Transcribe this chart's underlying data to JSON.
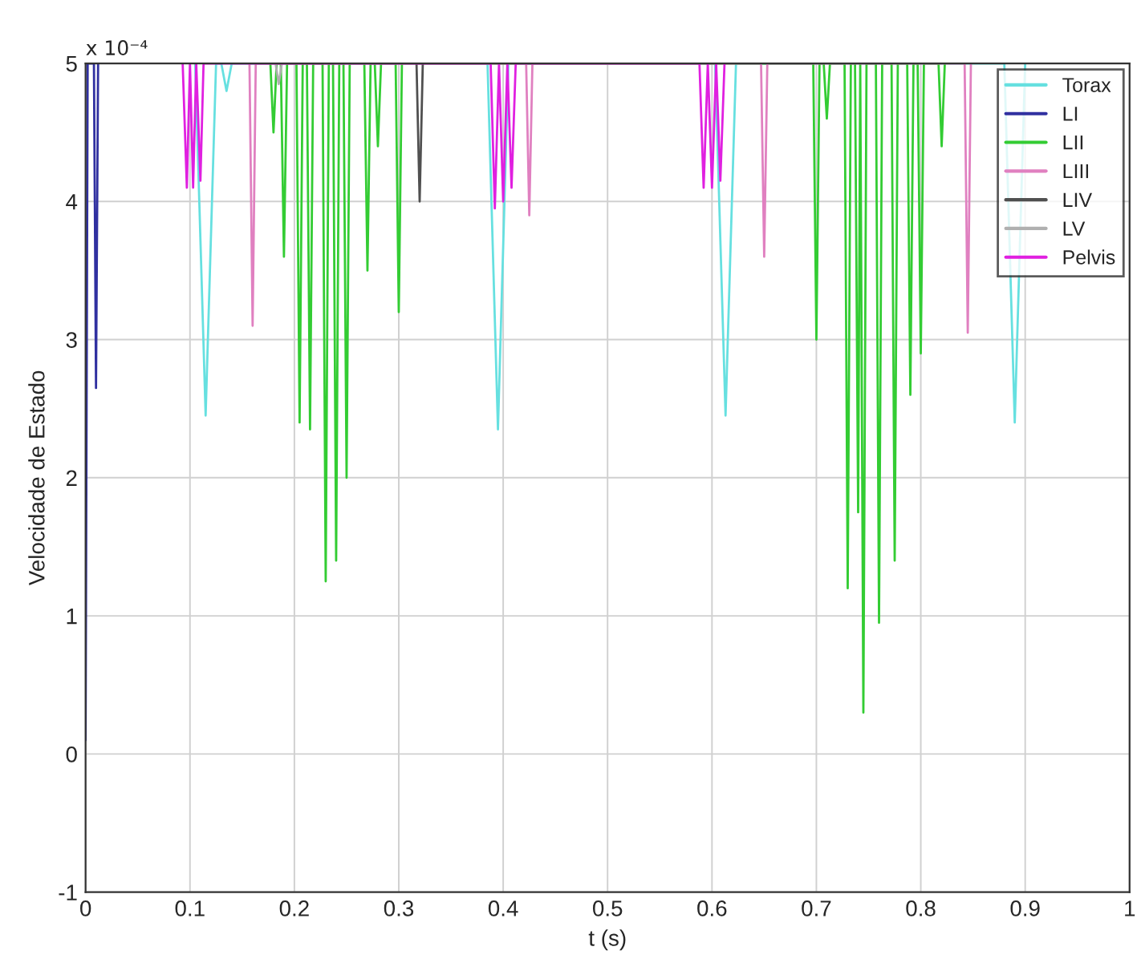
{
  "chart_data": {
    "type": "line",
    "xlabel": "t (s)",
    "ylabel": "Velocidade de Estado",
    "annotations": [
      "x 10⁻⁴"
    ],
    "xlim": [
      0,
      1
    ],
    "ylim": [
      -1,
      5
    ],
    "xticks": [
      0,
      0.1,
      0.2,
      0.3,
      0.4,
      0.5,
      0.6,
      0.7,
      0.8,
      0.9,
      1
    ],
    "yticks": [
      -1,
      0,
      1,
      2,
      3,
      4,
      5
    ],
    "grid": true,
    "legend": "top right",
    "marker": "none",
    "line_style": "solid",
    "series": [
      {
        "name": "Torax",
        "color": "#66e0e0",
        "x": [
          0.105,
          0.115,
          0.125,
          0.13,
          0.135,
          0.14,
          0.385,
          0.395,
          0.405,
          0.603,
          0.613,
          0.623,
          0.88,
          0.89,
          0.9
        ],
        "values": [
          5,
          2.45,
          5,
          5,
          4.8,
          5,
          5,
          2.35,
          5,
          5,
          2.45,
          5,
          5,
          2.4,
          5
        ]
      },
      {
        "name": "LI",
        "color": "#3030a0",
        "x": [
          0.0,
          0.002,
          0.008,
          0.01,
          0.012
        ],
        "values": [
          0.1,
          5,
          5,
          2.65,
          5
        ]
      },
      {
        "name": "LII",
        "color": "#33cc33",
        "x": [
          0.177,
          0.18,
          0.183,
          0.187,
          0.19,
          0.193,
          0.202,
          0.205,
          0.208,
          0.212,
          0.215,
          0.218,
          0.227,
          0.23,
          0.233,
          0.237,
          0.24,
          0.243,
          0.247,
          0.25,
          0.253,
          0.267,
          0.27,
          0.273,
          0.277,
          0.28,
          0.283,
          0.297,
          0.3,
          0.303,
          0.697,
          0.7,
          0.703,
          0.707,
          0.71,
          0.713,
          0.727,
          0.73,
          0.733,
          0.737,
          0.74,
          0.742,
          0.745,
          0.748,
          0.757,
          0.76,
          0.763,
          0.772,
          0.775,
          0.778,
          0.787,
          0.79,
          0.793,
          0.797,
          0.8,
          0.803,
          0.817,
          0.82,
          0.823
        ],
        "values": [
          5,
          4.5,
          5,
          5,
          3.6,
          5,
          5,
          2.4,
          5,
          5,
          2.35,
          5,
          5,
          1.25,
          5,
          5,
          1.4,
          5,
          5,
          2.0,
          5,
          5,
          3.5,
          5,
          5,
          4.4,
          5,
          5,
          3.2,
          5,
          5,
          3.0,
          5,
          5,
          4.6,
          5,
          5,
          1.2,
          5,
          5,
          1.75,
          5,
          0.3,
          5,
          5,
          0.95,
          5,
          5,
          1.4,
          5,
          5,
          2.6,
          5,
          5,
          2.9,
          5,
          5,
          4.4,
          5
        ]
      },
      {
        "name": "LIII",
        "color": "#e080c0",
        "x": [
          0.157,
          0.16,
          0.163,
          0.422,
          0.425,
          0.428,
          0.647,
          0.65,
          0.653,
          0.842,
          0.845,
          0.848
        ],
        "values": [
          5,
          3.1,
          5,
          5,
          3.9,
          5,
          5,
          3.6,
          5,
          5,
          3.05,
          5
        ]
      },
      {
        "name": "LIV",
        "color": "#505050",
        "x": [
          0.317,
          0.32,
          0.323
        ],
        "values": [
          5,
          4.0,
          5
        ]
      },
      {
        "name": "LV",
        "color": "#b0b0b0",
        "x": [
          0.182,
          0.185,
          0.188
        ],
        "values": [
          5,
          4.85,
          5
        ]
      },
      {
        "name": "Pelvis",
        "color": "#e020e0",
        "x": [
          0.093,
          0.097,
          0.1,
          0.103,
          0.106,
          0.11,
          0.113,
          0.388,
          0.392,
          0.396,
          0.4,
          0.404,
          0.408,
          0.412,
          0.588,
          0.592,
          0.596,
          0.6,
          0.604,
          0.608,
          0.612
        ],
        "values": [
          5,
          4.1,
          5,
          4.1,
          5,
          4.15,
          5,
          5,
          3.95,
          5,
          4.0,
          5,
          4.1,
          5,
          5,
          4.1,
          5,
          4.1,
          5,
          4.15,
          5
        ]
      }
    ]
  }
}
